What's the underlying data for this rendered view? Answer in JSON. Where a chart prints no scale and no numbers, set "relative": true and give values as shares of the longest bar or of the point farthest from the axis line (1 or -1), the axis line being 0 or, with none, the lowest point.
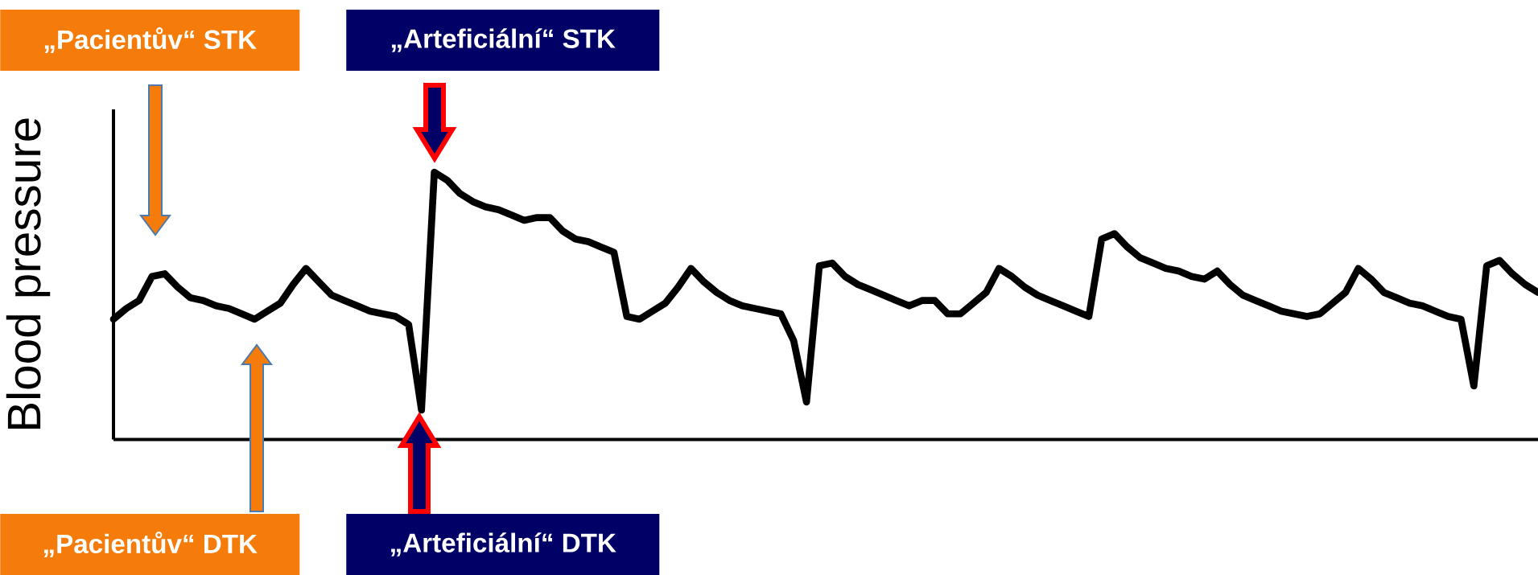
{
  "chart_data": {
    "type": "line",
    "ylabel": "Blood pressure",
    "relative": true,
    "categories": [
      null,
      null,
      null,
      null,
      null,
      null,
      null,
      null,
      null,
      null,
      null,
      null,
      null,
      null,
      null,
      null,
      null,
      null,
      null,
      null,
      null,
      null,
      null,
      null,
      null,
      null,
      null,
      null,
      null,
      null,
      null,
      null,
      null,
      null,
      null,
      null,
      null,
      null,
      null,
      null,
      null,
      null,
      null,
      null,
      null,
      null,
      null,
      null,
      null,
      null,
      null,
      null,
      null,
      null,
      null,
      null,
      null,
      null,
      null,
      null,
      null,
      null,
      null,
      null,
      null,
      null,
      null,
      null,
      null,
      null,
      null,
      null,
      null,
      null,
      null,
      null,
      null,
      null,
      null,
      null,
      null,
      null,
      null,
      null,
      null,
      null,
      null,
      null,
      null,
      null,
      null,
      null,
      null,
      null,
      null,
      null,
      null,
      null,
      null,
      null,
      null,
      null,
      null,
      null,
      null,
      null,
      null,
      null,
      null,
      null,
      null,
      null
    ],
    "series": [
      {
        "color": "#000000",
        "values": [
          0.45,
          0.49,
          0.52,
          0.61,
          0.62,
          0.57,
          0.53,
          0.52,
          0.5,
          0.49,
          0.47,
          0.45,
          0.48,
          0.51,
          0.58,
          0.64,
          0.59,
          0.54,
          0.52,
          0.5,
          0.48,
          0.47,
          0.46,
          0.43,
          0.11,
          1.0,
          0.97,
          0.92,
          0.89,
          0.87,
          0.86,
          0.84,
          0.82,
          0.83,
          0.83,
          0.78,
          0.75,
          0.74,
          0.72,
          0.7,
          0.46,
          0.45,
          0.48,
          0.51,
          0.57,
          0.64,
          0.59,
          0.55,
          0.52,
          0.5,
          0.49,
          0.48,
          0.47,
          0.37,
          0.14,
          0.65,
          0.66,
          0.61,
          0.58,
          0.56,
          0.54,
          0.52,
          0.5,
          0.52,
          0.52,
          0.47,
          0.47,
          0.51,
          0.55,
          0.64,
          0.61,
          0.57,
          0.54,
          0.52,
          0.5,
          0.48,
          0.46,
          0.75,
          0.77,
          0.72,
          0.68,
          0.66,
          0.64,
          0.63,
          0.61,
          0.6,
          0.63,
          0.58,
          0.54,
          0.52,
          0.5,
          0.48,
          0.47,
          0.46,
          0.47,
          0.51,
          0.55,
          0.64,
          0.6,
          0.55,
          0.53,
          0.51,
          0.5,
          0.48,
          0.46,
          0.45,
          0.2,
          0.65,
          0.67,
          0.62,
          0.58,
          0.55
        ]
      }
    ],
    "annotations": [
      "„Pacientův“ STK",
      "„Arteficiální“ STK",
      "„Pacientův“ DTK",
      "„Arteficiální“ DTK"
    ]
  }
}
